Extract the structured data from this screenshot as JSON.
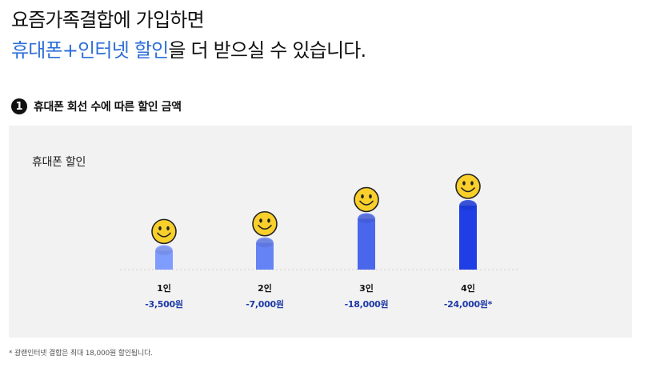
{
  "headline": {
    "line1": "요즘가족결합에 가입하면",
    "line2_accent": "휴대폰+인터넷 할인",
    "line2_rest": "을 더 받으실 수 있습니다."
  },
  "section": {
    "number": "1",
    "title": "휴대폰 회선 수에 따른 할인 금액"
  },
  "chart_data": {
    "type": "bar",
    "title": "휴대폰 할인",
    "categories": [
      "1인",
      "2인",
      "3인",
      "4인"
    ],
    "values": [
      3500,
      7000,
      18000,
      24000
    ],
    "value_labels": [
      "-3,500원",
      "-7,000원",
      "-18,000원",
      "-24,000원*"
    ],
    "ylim": [
      0,
      24000
    ],
    "grid": false,
    "legend": "none",
    "colors": [
      "#7f9cff",
      "#6683f5",
      "#4a67ec",
      "#1f3ee6"
    ],
    "marker_icon": "smiley-face-icon"
  },
  "footnote": "* 광랜인터넷 결합은 최대 18,000원 할인됩니다."
}
